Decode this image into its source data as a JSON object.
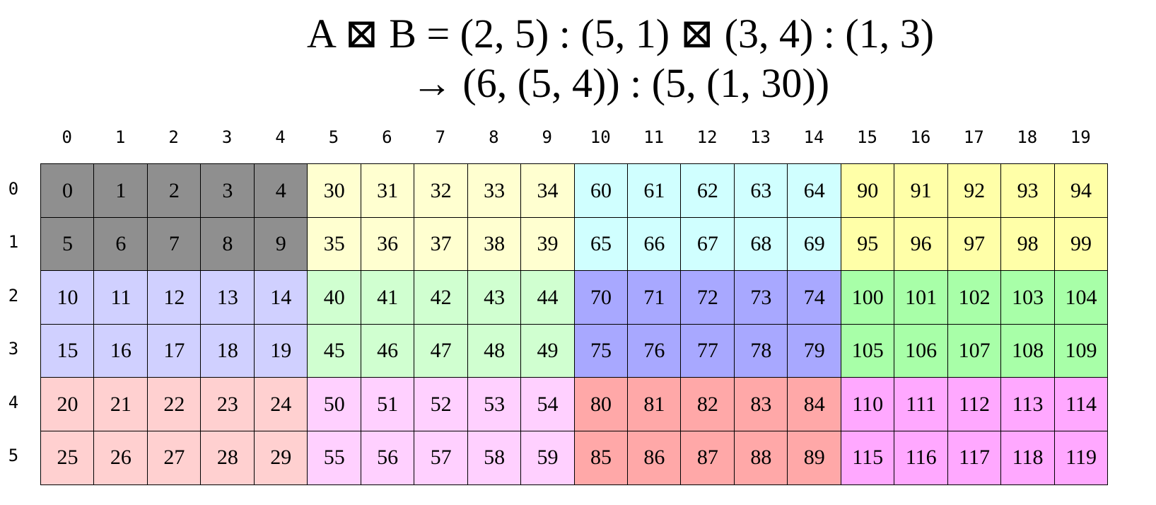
{
  "title": {
    "line1": "A ⊠ B = (2, 5) : (5, 1)  ⊠  (3, 4) : (1, 3)",
    "line2": "→ (6, (5, 4)) : (5, (1, 30))"
  },
  "col_labels": [
    "0",
    "1",
    "2",
    "3",
    "4",
    "5",
    "6",
    "7",
    "8",
    "9",
    "10",
    "11",
    "12",
    "13",
    "14",
    "15",
    "16",
    "17",
    "18",
    "19"
  ],
  "row_labels": [
    "0",
    "1",
    "2",
    "3",
    "4",
    "5"
  ],
  "block_colors": [
    [
      "#8f8f8f",
      "#ffffd0",
      "#d0ffff",
      "#ffffa8"
    ],
    [
      "#d0d0ff",
      "#d0ffd0",
      "#a8a8ff",
      "#a8ffa8"
    ],
    [
      "#ffd0d0",
      "#ffd0ff",
      "#ffa8a8",
      "#ffa8ff"
    ]
  ],
  "cells": [
    [
      "0",
      "1",
      "2",
      "3",
      "4",
      "30",
      "31",
      "32",
      "33",
      "34",
      "60",
      "61",
      "62",
      "63",
      "64",
      "90",
      "91",
      "92",
      "93",
      "94"
    ],
    [
      "5",
      "6",
      "7",
      "8",
      "9",
      "35",
      "36",
      "37",
      "38",
      "39",
      "65",
      "66",
      "67",
      "68",
      "69",
      "95",
      "96",
      "97",
      "98",
      "99"
    ],
    [
      "10",
      "11",
      "12",
      "13",
      "14",
      "40",
      "41",
      "42",
      "43",
      "44",
      "70",
      "71",
      "72",
      "73",
      "74",
      "100",
      "101",
      "102",
      "103",
      "104"
    ],
    [
      "15",
      "16",
      "17",
      "18",
      "19",
      "45",
      "46",
      "47",
      "48",
      "49",
      "75",
      "76",
      "77",
      "78",
      "79",
      "105",
      "106",
      "107",
      "108",
      "109"
    ],
    [
      "20",
      "21",
      "22",
      "23",
      "24",
      "50",
      "51",
      "52",
      "53",
      "54",
      "80",
      "81",
      "82",
      "83",
      "84",
      "110",
      "111",
      "112",
      "113",
      "114"
    ],
    [
      "25",
      "26",
      "27",
      "28",
      "29",
      "55",
      "56",
      "57",
      "58",
      "59",
      "85",
      "86",
      "87",
      "88",
      "89",
      "115",
      "116",
      "117",
      "118",
      "119"
    ]
  ]
}
